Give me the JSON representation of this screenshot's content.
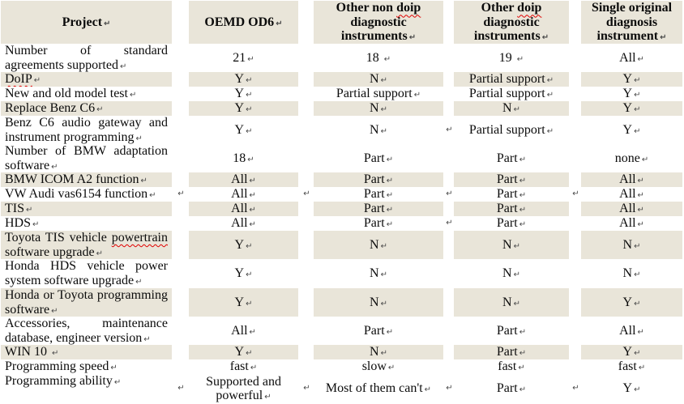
{
  "colors": {
    "row_shade": "#e9e5d9",
    "squiggle": "#e00000",
    "text": "#0b0b0b",
    "return_mark_color": "#4a4a4a"
  },
  "table": {
    "return_mark": "↵",
    "header": [
      {
        "label": "Project",
        "squiggle": null
      },
      {
        "label": "OEMD OD6",
        "squiggle": null
      },
      {
        "label": "Other non doip diagnostic instruments",
        "squiggle": "doip"
      },
      {
        "label": "Other doip diagnostic instruments",
        "squiggle": "doip"
      },
      {
        "label": "Single original diagnosis instrument",
        "squiggle": null
      }
    ],
    "rows": [
      {
        "project": "Number of standard agreements supported",
        "squiggle": null,
        "values": [
          "21",
          "18 ",
          "19 ",
          "All"
        ],
        "shaded": false
      },
      {
        "project": "DoIP",
        "squiggle": "DoIP",
        "values": [
          "Y",
          "N",
          "Partial support",
          "Y"
        ],
        "shaded": true
      },
      {
        "project": "New and old model test",
        "squiggle": null,
        "values": [
          "Y",
          "Partial support",
          "Partial support",
          "Y"
        ],
        "shaded": false
      },
      {
        "project": "Replace Benz C6",
        "squiggle": null,
        "values": [
          "Y",
          "N",
          "N",
          "Y"
        ],
        "shaded": true
      },
      {
        "project": "Benz C6 audio gateway and instrument programming",
        "squiggle": null,
        "values": [
          "Y",
          "N",
          "Partial support",
          "Y"
        ],
        "shaded": false
      },
      {
        "project": "Number of BMW adaptation software",
        "squiggle": null,
        "values": [
          "18",
          "Part",
          "Part",
          "none"
        ],
        "shaded": false
      },
      {
        "project": "BMW ICOM A2 function",
        "squiggle": null,
        "values": [
          "All",
          "Part",
          "Part",
          "All"
        ],
        "shaded": true
      },
      {
        "project": "VW Audi vas6154 function",
        "squiggle": null,
        "values": [
          "All",
          "Part",
          "Part",
          "All"
        ],
        "shaded": false
      },
      {
        "project": "TIS",
        "squiggle": null,
        "values": [
          "All",
          "Part",
          "Part",
          "All"
        ],
        "shaded": true
      },
      {
        "project": "HDS",
        "squiggle": null,
        "values": [
          "All",
          "Part",
          "Part",
          "All"
        ],
        "shaded": false
      },
      {
        "project": "Toyota TIS vehicle powertrain software upgrade",
        "squiggle": "powertrain",
        "values": [
          "Y",
          "N",
          "N",
          "N"
        ],
        "shaded": true
      },
      {
        "project": "Honda HDS vehicle power system software upgrade",
        "squiggle": null,
        "values": [
          "Y",
          "N",
          "N",
          "N"
        ],
        "shaded": false
      },
      {
        "project": "Honda or Toyota programming software",
        "squiggle": null,
        "values": [
          "Y",
          "N",
          "N",
          "Y"
        ],
        "shaded": true
      },
      {
        "project": "Accessories, maintenance database, engineer version",
        "squiggle": null,
        "values": [
          "All",
          "Part",
          "Part",
          "All"
        ],
        "shaded": false
      },
      {
        "project": "WIN 10 ",
        "squiggle": null,
        "values": [
          "Y",
          "N",
          "Part",
          "Y"
        ],
        "shaded": true
      },
      {
        "project": "Programming speed",
        "squiggle": null,
        "values": [
          "fast",
          "slow",
          "fast",
          "fast"
        ],
        "shaded": false
      },
      {
        "project": "Programming ability",
        "squiggle": null,
        "values": [
          "Supported and powerful",
          "Most of them can't",
          "Part",
          "Y"
        ],
        "shaded": false
      }
    ],
    "gap_marks": [
      {
        "row": 5,
        "gaps": [
          3
        ]
      },
      {
        "row": 8,
        "gaps": [
          1,
          2,
          3,
          4
        ]
      },
      {
        "row": 10,
        "gaps": [
          3
        ]
      },
      {
        "row": 17,
        "gaps": [
          1,
          2,
          3,
          4
        ]
      }
    ]
  }
}
